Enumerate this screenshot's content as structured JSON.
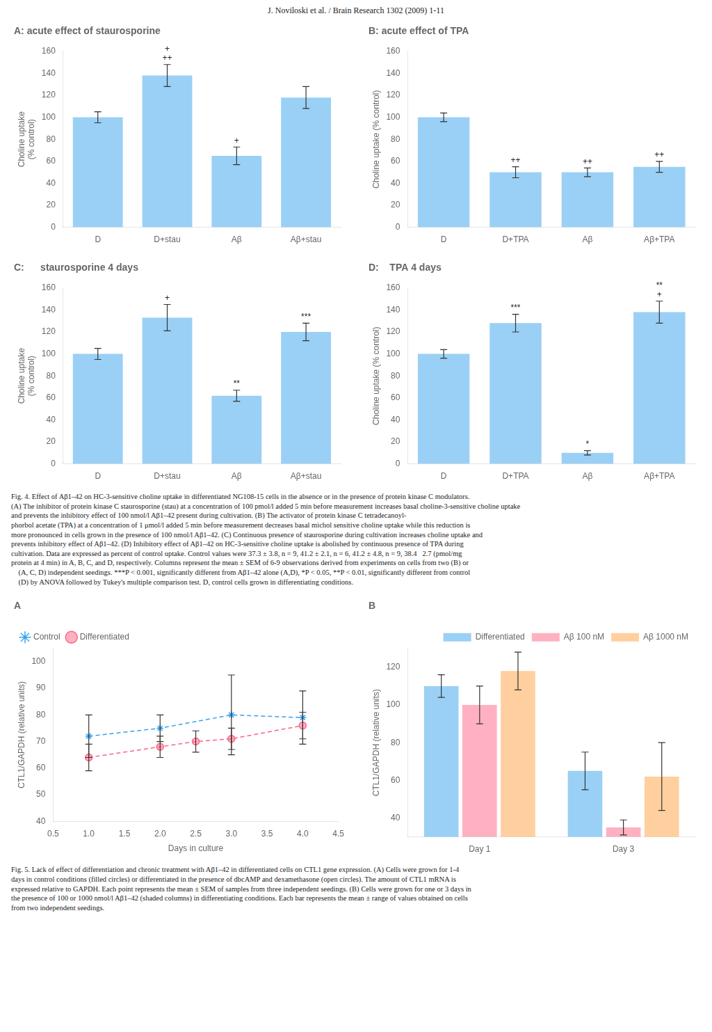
{
  "title": "J. Noviloski et al. / Brain Research 1302 (2009) 1-11",
  "chart_data": [
    {
      "type": "bar",
      "title": "A: acute effect of staurosporine",
      "categories": [
        "D",
        "D+stau",
        "Aβ",
        "Aβ+stau"
      ],
      "values": [
        100,
        138,
        65,
        118
      ],
      "errors": [
        5,
        10,
        8,
        10
      ],
      "ylabel": "Choline uptake\n(% control)",
      "ylim": [
        0,
        160
      ],
      "yticks": [
        0,
        20,
        40,
        60,
        80,
        100,
        120,
        140,
        160
      ],
      "grid": false,
      "annotations": [
        {
          "category": "D+stau",
          "text": "++"
        },
        {
          "category": "D+stau",
          "text": "+"
        },
        {
          "category": "Aβ",
          "text": "+"
        }
      ]
    },
    {
      "type": "bar",
      "title": "B: acute effect of TPA",
      "categories": [
        "D",
        "D+TPA",
        "Aβ",
        "Aβ+TPA"
      ],
      "values": [
        100,
        50,
        50,
        55
      ],
      "errors": [
        4,
        5,
        4,
        5
      ],
      "ylabel": "Choline uptake (% control)",
      "ylim": [
        0,
        160
      ],
      "yticks": [
        0,
        20,
        40,
        60,
        80,
        100,
        120,
        140,
        160
      ],
      "grid": false,
      "annotations": [
        {
          "category": "D+TPA",
          "text": "++"
        },
        {
          "category": "Aβ",
          "text": "++"
        },
        {
          "category": "Aβ+TPA",
          "text": "++"
        }
      ]
    },
    {
      "type": "bar",
      "title": "C:      staurosporine 4 days",
      "categories": [
        "D",
        "D+stau",
        "Aβ",
        "Aβ+stau"
      ],
      "values": [
        100,
        133,
        62,
        120
      ],
      "errors": [
        5,
        12,
        5,
        8
      ],
      "ylabel": "Choline uptake\n(% control)",
      "ylim": [
        0,
        160
      ],
      "yticks": [
        0,
        20,
        40,
        60,
        80,
        100,
        120,
        140,
        160
      ],
      "grid": false,
      "annotations": [
        {
          "category": "D+stau",
          "text": "+"
        },
        {
          "category": "Aβ",
          "text": "**"
        },
        {
          "category": "Aβ+stau",
          "text": "***"
        }
      ]
    },
    {
      "type": "bar",
      "title": "D:    TPA 4 days",
      "categories": [
        "D",
        "D+TPA",
        "Aβ",
        "Aβ+TPA"
      ],
      "values": [
        100,
        128,
        10,
        138
      ],
      "errors": [
        4,
        8,
        2,
        10
      ],
      "ylabel": "Choline uptake (% control)",
      "ylim": [
        0,
        160
      ],
      "yticks": [
        0,
        20,
        40,
        60,
        80,
        100,
        120,
        140,
        160
      ],
      "grid": false,
      "annotations": [
        {
          "category": "D+TPA",
          "text": "***"
        },
        {
          "category": "Aβ",
          "text": "*"
        },
        {
          "category": "Aβ+TPA",
          "text": "+"
        },
        {
          "category": "Aβ+TPA",
          "text": "**"
        }
      ]
    },
    {
      "type": "line",
      "title": "A",
      "xlabel": "Days in culture",
      "ylabel": "CTL1/GAPDH (relative units)",
      "xlim": [
        0.5,
        4.5
      ],
      "xticks": [
        0.5,
        {
          "value": 1.0,
          "label": "1.0"
        },
        1.5,
        {
          "value": 2.0,
          "label": "2.0"
        },
        2.5,
        {
          "value": 3.0,
          "label": "3.0"
        },
        3.5,
        {
          "value": 4.0,
          "label": "4.0"
        },
        4.5
      ],
      "ylim": [
        40,
        105
      ],
      "yticks": [
        40,
        50,
        60,
        70,
        80,
        90,
        100
      ],
      "grid": false,
      "legend": "upper left",
      "series": [
        {
          "name": "Control",
          "x": [
            1.0,
            2.0,
            3.0,
            4.0
          ],
          "values": [
            72,
            75,
            80,
            79
          ],
          "errors": [
            8,
            5,
            15,
            10
          ],
          "marker": "star",
          "line_style": "dashed"
        },
        {
          "name": "Differentiated",
          "x": [
            1.0,
            2.0,
            2.5,
            3.0,
            4.0
          ],
          "values": [
            64,
            68,
            70,
            71,
            76
          ],
          "errors": [
            5,
            4,
            4,
            4,
            5
          ],
          "marker": "circle",
          "line_style": "dashed"
        }
      ]
    },
    {
      "type": "bar",
      "title": "B",
      "categories": [
        "Day 1",
        "Day 3"
      ],
      "ylabel": "CTL1/GAPDH (relative units)",
      "ylim": [
        30,
        130
      ],
      "yticks": [
        40,
        60,
        80,
        100,
        120
      ],
      "grid": false,
      "legend": "upper right",
      "series": [
        {
          "name": "Differentiated",
          "values": [
            110,
            65
          ],
          "errors": [
            6,
            10
          ]
        },
        {
          "name": "Aβ 100 nM",
          "values": [
            100,
            35
          ],
          "errors": [
            10,
            4
          ]
        },
        {
          "name": "Aβ 1000 nM",
          "values": [
            118,
            62
          ],
          "errors": [
            10,
            18
          ]
        }
      ]
    }
  ],
  "captions": [
    [
      "Fig. 4. Effect of Aβ1–42 on HC-3-sensitive choline uptake in differentiated NG108-15 cells in the absence or in the presence of protein kinase C modulators.",
      "(A) The inhibitor of protein kinase C staurosporine (stau) at a concentration of 100 pmol/l added 5 min before measurement increases basal choline-3-sensitive choline uptake",
      "and prevents the inhibitory effect of 100 nmol/l Aβ1–42 present during cultivation. (B) The activator of protein kinase C tetradecanoyl-",
      "phorbol acetate (TPA) at a concentration of 1 μmol/l added 5 min before measurement decreases basal michol sensitive choline uptake while this reduction is",
      "more pronounced in cells grown in the presence of 100 nmol/l Aβ1–42. (C) Continuous presence of staurosporine during cultivation increases choline uptake and",
      "prevents inhibitory effect of Aβ1–42. (D) Inhibitory effect of Aβ1–42 on HC-3-sensitive choline uptake is abolished by continuous presence of TPA during",
      "cultivation. Data are expressed as percent of control uptake. Control values were 37.3 ± 3.8, n = 9, 41.2 ± 2.1, n = 6, 41.2 ± 4.8, n = 9, 38.4   2.7 (pmol/mg",
      "protein at 4 min) in A, B, C, and D, respectively. Columns represent the mean ± SEM of 6-9 observations derived from experiments on cells from two (B) or",
      "    (A, C, D) independent seedings. ***P < 0.001, significantly different from Aβ1–42 alone (A,D), *P < 0.05, **P < 0.01, significantly different from control",
      "    (D) by ANOVA followed by Tukey's multiple comparison test. D, control cells grown in differentiating conditions."
    ],
    [
      "Fig. 5. Lack of effect of differentiation and chronic treatment with Aβ1–42 in differentiated cells on CTL1 gene expression. (A) Cells were grown for 1-4",
      "days in control conditions (filled circles) or differentiated in the presence of dbcAMP and dexamethasone (open circles). The amount of CTL1 mRNA is",
      "expressed relative to GAPDH. Each point represents the mean ± SEM of samples from three independent seedings. (B) Cells were grown for one or 3 days in",
      "the presence of 100 or 1000 nmol/l Aβ1–42 (shaded columns) in differentiating conditions. Each bar represents the mean ± range of values obtained on cells",
      "from two independent seedings."
    ]
  ]
}
